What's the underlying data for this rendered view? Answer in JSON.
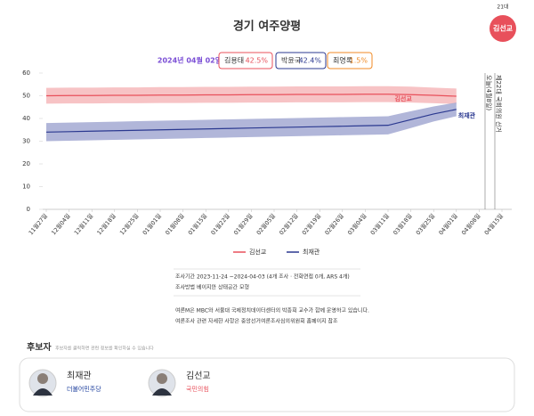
{
  "header": {
    "term": "21대",
    "winner": "김선교",
    "title": "경기 여주양평",
    "date": "2024년 04월 02일",
    "polls": [
      {
        "name": "김용태",
        "value": "42.5%",
        "color": "#e8505b"
      },
      {
        "name": "박윤국",
        "value": "42.4%",
        "color": "#2b3990"
      },
      {
        "name": "최영록",
        "value": "1.5%",
        "color": "#f08a24"
      }
    ]
  },
  "chart_data": {
    "type": "line",
    "x": [
      "11월27일",
      "12월04일",
      "12월11일",
      "12월18일",
      "12월25일",
      "01월01일",
      "01월08일",
      "01월15일",
      "01월22일",
      "01월29일",
      "02월05일",
      "02월12일",
      "02월19일",
      "02월26일",
      "03월04일",
      "03월11일",
      "03월18일",
      "03월25일",
      "04월01일",
      "04월08일",
      "04월15일"
    ],
    "ylim": [
      0,
      60
    ],
    "yticks": [
      0,
      10,
      20,
      30,
      40,
      50,
      60
    ],
    "grid": false,
    "series": [
      {
        "name": "김선교",
        "color": "#e8505b",
        "band_color": "#f6b8bb",
        "values": [
          50,
          50.1,
          50.1,
          50.2,
          50.2,
          50.3,
          50.3,
          50.4,
          50.4,
          50.5,
          50.5,
          50.6,
          50.6,
          50.6,
          50.7,
          50.7,
          50.5,
          50.2,
          49.8,
          null,
          null
        ],
        "upper": [
          53.5,
          53.6,
          53.6,
          53.7,
          53.7,
          53.8,
          53.8,
          53.9,
          53.9,
          54,
          54,
          54.1,
          54.1,
          54.1,
          54.2,
          54.2,
          54,
          53.6,
          53.2,
          null,
          null
        ],
        "lower": [
          46.5,
          46.6,
          46.6,
          46.7,
          46.7,
          46.8,
          46.8,
          46.9,
          46.9,
          47,
          47,
          47.1,
          47.1,
          47.1,
          47.2,
          47.2,
          47,
          46.7,
          46.4,
          null,
          null
        ]
      },
      {
        "name": "최재관",
        "color": "#2b3990",
        "band_color": "#a3a9d2",
        "values": [
          34,
          34.2,
          34.4,
          34.6,
          34.8,
          35,
          35.2,
          35.4,
          35.6,
          35.8,
          36,
          36.2,
          36.4,
          36.6,
          36.8,
          37,
          39.5,
          42,
          44,
          null,
          null
        ],
        "upper": [
          38,
          38.2,
          38.4,
          38.6,
          38.8,
          39,
          39.2,
          39.4,
          39.6,
          39.8,
          40,
          40.2,
          40.4,
          40.6,
          40.8,
          41,
          43.2,
          45.3,
          47,
          null,
          null
        ],
        "lower": [
          30,
          30.2,
          30.4,
          30.6,
          30.8,
          31,
          31.2,
          31.4,
          31.6,
          31.8,
          32,
          32.2,
          32.4,
          32.6,
          32.8,
          33,
          35.8,
          38.7,
          41,
          null,
          null
        ]
      }
    ],
    "markers": [
      "오늘(4월8일)",
      "제22대 국회의원 선거"
    ]
  },
  "notes": {
    "lines": [
      "조사기간 2023-11-24 ~2024-04-03 (4개 조사 · 전화면접 0개, ARS 4개)",
      "조사방법 베이지안 상태공간 모형",
      "여론M은 MBC와 서울대 국제정치데이터센터의 박종희 교수가 함께 운영하고 있습니다.",
      "여론조사 관련 자세한 사항은 중앙선거여론조사심의위원회 홈페이지 참조"
    ]
  },
  "candidates": {
    "title": "후보자",
    "hint": "후보자를 클릭하면 관련 정보를 확인하실 수 있습니다",
    "list": [
      {
        "name": "최재관",
        "party": "더불어민주당",
        "party_color": "#1b3d9c"
      },
      {
        "name": "김선교",
        "party": "국민의힘",
        "party_color": "#e8505b"
      }
    ]
  }
}
